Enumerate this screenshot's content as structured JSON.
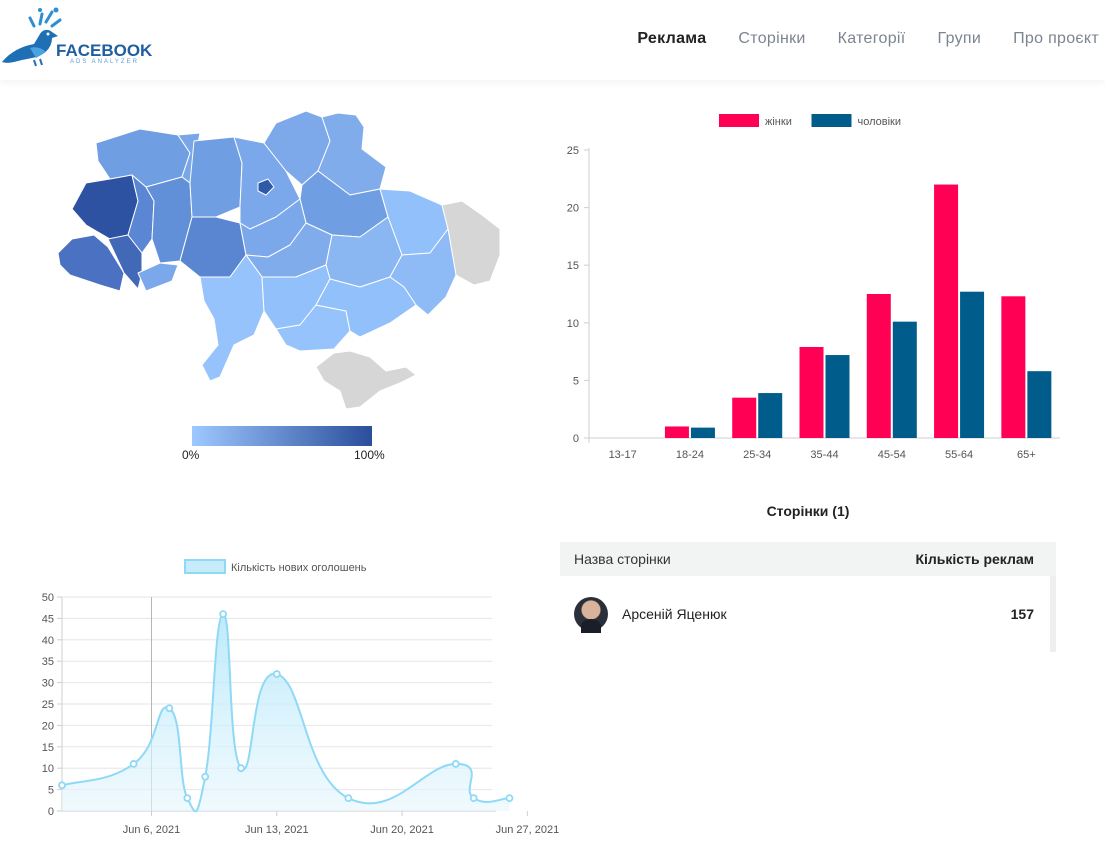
{
  "header": {
    "logo_text": "FACEBOOK",
    "logo_sub": "ADS ANALYZER",
    "nav": [
      {
        "label": "Реклама",
        "active": true
      },
      {
        "label": "Сторінки",
        "active": false
      },
      {
        "label": "Категорії",
        "active": false
      },
      {
        "label": "Групи",
        "active": false
      },
      {
        "label": "Про проєкт",
        "active": false
      }
    ]
  },
  "map": {
    "legend_min": "0%",
    "legend_max": "100%",
    "color_low": "#9ec8ff",
    "color_high": "#2a4e9b",
    "color_na": "#d9d9d9"
  },
  "chart_data": [
    {
      "type": "bar",
      "categories": [
        "13-17",
        "18-24",
        "25-34",
        "35-44",
        "45-54",
        "55-64",
        "65+"
      ],
      "series": [
        {
          "name": "жінки",
          "color": "#ff0055",
          "values": [
            0,
            1,
            3.5,
            7.9,
            12.5,
            22,
            12.3
          ]
        },
        {
          "name": "чоловіки",
          "color": "#005c8a",
          "values": [
            0,
            0.9,
            3.9,
            7.2,
            10.1,
            12.7,
            5.8
          ]
        }
      ],
      "ylim": [
        0,
        25
      ],
      "yticks": [
        0,
        5,
        10,
        15,
        20,
        25
      ],
      "legend": "top",
      "grid": false
    },
    {
      "type": "area",
      "series": [
        {
          "name": "Кількість нових оголошень",
          "color": "#8fd9f7",
          "x": [
            "2021-06-01",
            "2021-06-05",
            "2021-06-07",
            "2021-06-08",
            "2021-06-09",
            "2021-06-10",
            "2021-06-11",
            "2021-06-13",
            "2021-06-17",
            "2021-06-23",
            "2021-06-24",
            "2021-06-26"
          ],
          "values": [
            6,
            11,
            24,
            3,
            8,
            46,
            10,
            32,
            3,
            11,
            3,
            3
          ]
        }
      ],
      "xticks": [
        "Jun 6, 2021",
        "Jun 13, 2021",
        "Jun 20, 2021",
        "Jun 27, 2021"
      ],
      "ylim": [
        0,
        50
      ],
      "yticks": [
        0,
        5,
        10,
        15,
        20,
        25,
        30,
        35,
        40,
        45,
        50
      ],
      "legend": "top",
      "grid": true
    }
  ],
  "pages": {
    "title": "Сторінки (1)",
    "col_name": "Назва сторінки",
    "col_count": "Кількість реклам",
    "rows": [
      {
        "name": "Арсеній Яценюк",
        "count": "157"
      }
    ]
  }
}
